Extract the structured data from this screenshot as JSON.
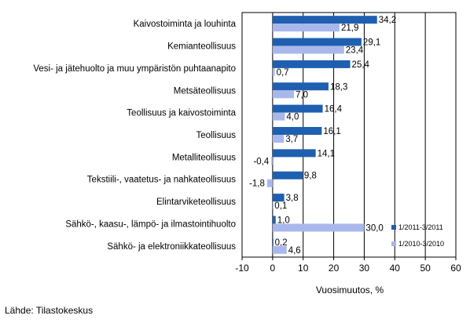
{
  "chart_data": {
    "type": "bar",
    "orientation": "horizontal",
    "categories": [
      "Kaivostoiminta ja louhinta",
      "Kemianteollisuus",
      "Vesi- ja jätehuolto ja muu ympäristön puhtaanapito",
      "Metsäteollisuus",
      "Teollisuus ja kaivostoiminta",
      "Teollisuus",
      "Metalliteollisuus",
      "Tekstiili-, vaatetus- ja nahkateollisuus",
      "Elintarviketeollisuus",
      "Sähkö-, kaasu-, lämpö- ja ilmastointihuolto",
      "Sähkö- ja elektroniikkateollisuus"
    ],
    "series": [
      {
        "name": "1/2011-3/2011",
        "color": "#1F5FB0",
        "values": [
          34.2,
          29.1,
          25.4,
          18.3,
          16.4,
          16.1,
          14.1,
          9.8,
          3.8,
          1.0,
          0.2
        ],
        "labels": [
          "34,2",
          "29,1",
          "25,4",
          "18,3",
          "16,4",
          "16,1",
          "14,1",
          "9,8",
          "3,8",
          "1,0",
          "0,2"
        ]
      },
      {
        "name": "1/2010-3/2010",
        "color": "#A9B8EC",
        "values": [
          21.9,
          23.4,
          0.7,
          7.0,
          4.0,
          3.7,
          -0.4,
          -1.8,
          0.1,
          30.0,
          4.6
        ],
        "labels": [
          "21,9",
          "23,4",
          "0,7",
          "7,0",
          "4,0",
          "3,7",
          "-0,4",
          "-1,8",
          "0,1",
          "30,0",
          "4,6"
        ]
      }
    ],
    "xlim": [
      -10,
      60
    ],
    "xticks": [
      -10,
      0,
      10,
      20,
      30,
      40,
      50,
      60
    ],
    "xlabel": "Vuosimuutos, %",
    "grid": "vertical",
    "legend": "right"
  },
  "source": "Lähde: Tilastokeskus"
}
